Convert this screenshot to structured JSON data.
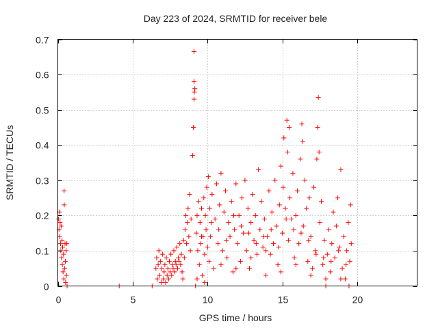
{
  "chart_data": {
    "type": "scatter",
    "title": "Day 223 of 2024, SRMTID for receiver bele",
    "xlabel": "GPS time / hours",
    "ylabel": "SRMTID / TECUs",
    "xlim": [
      0,
      24
    ],
    "ylim": [
      0,
      0.7
    ],
    "xticks": [
      0,
      5,
      10,
      15,
      20
    ],
    "yticks": [
      0,
      0.1,
      0.2,
      0.3,
      0.4,
      0.5,
      0.6,
      0.7
    ],
    "xtick_labels": [
      "0",
      "5",
      "10",
      "15",
      "20"
    ],
    "ytick_labels": [
      "0",
      "0.1",
      "0.2",
      "0.3",
      "0.4",
      "0.5",
      "0.6",
      "0.7"
    ],
    "grid": true,
    "marker": "+",
    "marker_color": "#ff0000",
    "series": [
      {
        "name": "SRMTID",
        "points": [
          [
            0.05,
            0.19
          ],
          [
            0.08,
            0.16
          ],
          [
            0.1,
            0.21
          ],
          [
            0.12,
            0.14
          ],
          [
            0.15,
            0.18
          ],
          [
            0.18,
            0.12
          ],
          [
            0.2,
            0.1
          ],
          [
            0.22,
            0.17
          ],
          [
            0.25,
            0.08
          ],
          [
            0.28,
            0.13
          ],
          [
            0.3,
            0.06
          ],
          [
            0.32,
            0.11
          ],
          [
            0.35,
            0.04
          ],
          [
            0.38,
            0.09
          ],
          [
            0.4,
            0.02
          ],
          [
            0.42,
            0.27
          ],
          [
            0.43,
            0.23
          ],
          [
            0.45,
            0.05
          ],
          [
            0.48,
            0.12
          ],
          [
            0.5,
            0.07
          ],
          [
            0.52,
            0.01
          ],
          [
            0.55,
            0.1
          ],
          [
            0.58,
            0.03
          ],
          [
            0.6,
            0.12
          ],
          [
            0.62,
            0.0
          ],
          [
            4.1,
            0.0
          ],
          [
            6.3,
            0.0
          ],
          [
            6.55,
            0.05
          ],
          [
            6.6,
            0.08
          ],
          [
            6.65,
            0.02
          ],
          [
            6.7,
            0.06
          ],
          [
            6.75,
            0.1
          ],
          [
            6.8,
            0.03
          ],
          [
            6.85,
            0.07
          ],
          [
            6.9,
            0.01
          ],
          [
            6.95,
            0.05
          ],
          [
            7.0,
            0.09
          ],
          [
            7.05,
            0.02
          ],
          [
            7.1,
            0.04
          ],
          [
            7.15,
            0.06
          ],
          [
            7.2,
            0.01
          ],
          [
            7.25,
            0.08
          ],
          [
            7.3,
            0.03
          ],
          [
            7.35,
            0.05
          ],
          [
            7.4,
            0.02
          ],
          [
            7.45,
            0.07
          ],
          [
            7.5,
            0.04
          ],
          [
            7.55,
            0.09
          ],
          [
            7.6,
            0.03
          ],
          [
            7.65,
            0.06
          ],
          [
            7.7,
            0.05
          ],
          [
            7.75,
            0.1
          ],
          [
            7.8,
            0.04
          ],
          [
            7.85,
            0.07
          ],
          [
            7.9,
            0.06
          ],
          [
            7.95,
            0.11
          ],
          [
            8.0,
            0.05
          ],
          [
            8.05,
            0.08
          ],
          [
            8.1,
            0.07
          ],
          [
            8.15,
            0.12
          ],
          [
            8.2,
            0.06
          ],
          [
            8.25,
            0.09
          ],
          [
            8.3,
            0.04
          ],
          [
            8.35,
            0.02
          ],
          [
            8.4,
            0.13
          ],
          [
            8.45,
            0.08
          ],
          [
            8.5,
            0.16
          ],
          [
            8.55,
            0.2
          ],
          [
            8.6,
            0.12
          ],
          [
            8.65,
            0.18
          ],
          [
            8.7,
            0.22
          ],
          [
            8.75,
            0.14
          ],
          [
            8.8,
            0.26
          ],
          [
            8.85,
            0.1
          ],
          [
            8.9,
            0.19
          ],
          [
            9.0,
            0.37
          ],
          [
            9.05,
            0.45
          ],
          [
            9.1,
            0.53
          ],
          [
            9.12,
            0.55
          ],
          [
            9.15,
            0.56
          ],
          [
            9.1,
            0.58
          ],
          [
            9.1,
            0.665
          ],
          [
            9.2,
            0.0
          ],
          [
            9.25,
            0.15
          ],
          [
            9.3,
            0.2
          ],
          [
            9.35,
            0.1
          ],
          [
            9.4,
            0.24
          ],
          [
            9.45,
            0.06
          ],
          [
            9.5,
            0.18
          ],
          [
            9.55,
            0.12
          ],
          [
            9.6,
            0.22
          ],
          [
            9.65,
            0.03
          ],
          [
            9.7,
            0.14
          ],
          [
            9.75,
            0.25
          ],
          [
            9.8,
            0.09
          ],
          [
            9.85,
            0.2
          ],
          [
            9.9,
            0.16
          ],
          [
            9.95,
            0.28
          ],
          [
            10.0,
            0.11
          ],
          [
            10.05,
            0.31
          ],
          [
            10.1,
            0.07
          ],
          [
            10.15,
            0.22
          ],
          [
            10.2,
            0.14
          ],
          [
            10.3,
            0.26
          ],
          [
            10.4,
            0.05
          ],
          [
            10.5,
            0.19
          ],
          [
            10.6,
            0.29
          ],
          [
            10.7,
            0.12
          ],
          [
            10.8,
            0.23
          ],
          [
            10.9,
            0.32
          ],
          [
            11.0,
            0.1
          ],
          [
            11.1,
            0.21
          ],
          [
            11.2,
            0.27
          ],
          [
            11.3,
            0.08
          ],
          [
            11.4,
            0.18
          ],
          [
            11.5,
            0.14
          ],
          [
            11.6,
            0.24
          ],
          [
            11.7,
            0.04
          ],
          [
            11.8,
            0.16
          ],
          [
            11.9,
            0.29
          ],
          [
            12.0,
            0.12
          ],
          [
            12.1,
            0.2
          ],
          [
            12.2,
            0.07
          ],
          [
            12.3,
            0.25
          ],
          [
            12.4,
            0.15
          ],
          [
            12.5,
            0.3
          ],
          [
            12.6,
            0.1
          ],
          [
            12.7,
            0.22
          ],
          [
            12.8,
            0.05
          ],
          [
            12.9,
            0.18
          ],
          [
            13.0,
            0.26
          ],
          [
            13.1,
            0.13
          ],
          [
            13.2,
            0.2
          ],
          [
            13.3,
            0.09
          ],
          [
            13.4,
            0.33
          ],
          [
            13.5,
            0.16
          ],
          [
            13.6,
            0.24
          ],
          [
            13.7,
            0.11
          ],
          [
            13.8,
            0.19
          ],
          [
            13.9,
            0.03
          ],
          [
            14.0,
            0.14
          ],
          [
            14.1,
            0.27
          ],
          [
            14.2,
            0.09
          ],
          [
            14.3,
            0.21
          ],
          [
            14.4,
            0.12
          ],
          [
            14.5,
            0.3
          ],
          [
            14.6,
            0.17
          ],
          [
            14.7,
            0.06
          ],
          [
            14.8,
            0.23
          ],
          [
            14.9,
            0.34
          ],
          [
            15.0,
            0.15
          ],
          [
            15.05,
            0.28
          ],
          [
            15.1,
            0.42
          ],
          [
            15.2,
            0.22
          ],
          [
            15.3,
            0.47
          ],
          [
            15.35,
            0.38
          ],
          [
            15.4,
            0.13
          ],
          [
            15.45,
            0.45
          ],
          [
            15.5,
            0.25
          ],
          [
            15.6,
            0.19
          ],
          [
            15.7,
            0.32
          ],
          [
            15.8,
            0.08
          ],
          [
            15.9,
            0.2
          ],
          [
            16.0,
            0.27
          ],
          [
            16.1,
            0.12
          ],
          [
            16.2,
            0.36
          ],
          [
            16.3,
            0.46
          ],
          [
            16.35,
            0.41
          ],
          [
            16.4,
            0.17
          ],
          [
            16.5,
            0.3
          ],
          [
            16.6,
            0.22
          ],
          [
            16.7,
            0.07
          ],
          [
            16.8,
            0.25
          ],
          [
            16.9,
            0.14
          ],
          [
            17.0,
            0.05
          ],
          [
            17.1,
            0.28
          ],
          [
            17.2,
            0.1
          ],
          [
            17.3,
            0.36
          ],
          [
            17.35,
            0.45
          ],
          [
            17.4,
            0.535
          ],
          [
            17.45,
            0.38
          ],
          [
            17.5,
            0.18
          ],
          [
            17.6,
            0.24
          ],
          [
            17.7,
            0.06
          ],
          [
            17.8,
            0.13
          ],
          [
            17.9,
            0.02
          ],
          [
            18.0,
            0.09
          ],
          [
            18.1,
            0.16
          ],
          [
            18.2,
            0.04
          ],
          [
            18.3,
            0.12
          ],
          [
            18.4,
            0.21
          ],
          [
            18.5,
            0.08
          ],
          [
            18.6,
            0.17
          ],
          [
            18.7,
            0.25
          ],
          [
            18.8,
            0.11
          ],
          [
            18.9,
            0.33
          ],
          [
            19.0,
            0.05
          ],
          [
            19.1,
            0.14
          ],
          [
            19.2,
            0.02
          ],
          [
            19.3,
            0.1
          ],
          [
            19.4,
            0.18
          ],
          [
            19.5,
            0.07
          ],
          [
            19.55,
            0.23
          ],
          [
            19.6,
            0.12
          ],
          [
            9.3,
            0.02
          ],
          [
            9.6,
            0.14
          ],
          [
            10.25,
            0.18
          ],
          [
            10.75,
            0.16
          ],
          [
            11.25,
            0.13
          ],
          [
            11.75,
            0.2
          ],
          [
            12.25,
            0.17
          ],
          [
            12.75,
            0.15
          ],
          [
            13.25,
            0.12
          ],
          [
            13.75,
            0.14
          ],
          [
            14.25,
            0.16
          ],
          [
            14.75,
            0.11
          ],
          [
            15.25,
            0.19
          ],
          [
            15.75,
            0.16
          ],
          [
            16.25,
            0.15
          ],
          [
            16.75,
            0.13
          ],
          [
            17.25,
            0.09
          ],
          [
            17.75,
            0.08
          ],
          [
            18.25,
            0.07
          ],
          [
            18.75,
            0.1
          ],
          [
            19.25,
            0.06
          ],
          [
            9.8,
            0.01
          ],
          [
            10.9,
            0.06
          ],
          [
            11.9,
            0.05
          ],
          [
            12.9,
            0.08
          ],
          [
            13.9,
            0.1
          ],
          [
            14.9,
            0.04
          ],
          [
            15.9,
            0.06
          ],
          [
            16.9,
            0.03
          ],
          [
            17.9,
            0.0
          ],
          [
            18.9,
            0.02
          ],
          [
            19.45,
            0.0
          ]
        ]
      }
    ]
  }
}
